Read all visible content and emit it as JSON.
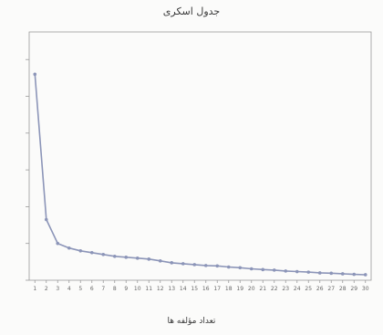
{
  "chart_data": {
    "type": "line",
    "title": "جدول اسکری",
    "xlabel": "تعداد مؤلفه ها",
    "ylabel": "",
    "categories": [
      "1",
      "2",
      "3",
      "4",
      "5",
      "6",
      "7",
      "8",
      "9",
      "10",
      "11",
      "12",
      "13",
      "14",
      "15",
      "16",
      "17",
      "18",
      "19",
      "20",
      "21",
      "22",
      "23",
      "24",
      "25",
      "26",
      "27",
      "28",
      "29",
      "30"
    ],
    "series": [
      {
        "values": [
          11.2,
          3.3,
          2.0,
          1.75,
          1.6,
          1.5,
          1.4,
          1.3,
          1.25,
          1.2,
          1.15,
          1.05,
          0.95,
          0.9,
          0.85,
          0.8,
          0.78,
          0.72,
          0.68,
          0.62,
          0.58,
          0.55,
          0.5,
          0.47,
          0.44,
          0.4,
          0.38,
          0.35,
          0.32,
          0.3
        ]
      }
    ],
    "ylim": [
      0,
      13.5
    ],
    "grid": false,
    "line_color": "#8c95b8",
    "axis_color": "#9a9a9a"
  }
}
